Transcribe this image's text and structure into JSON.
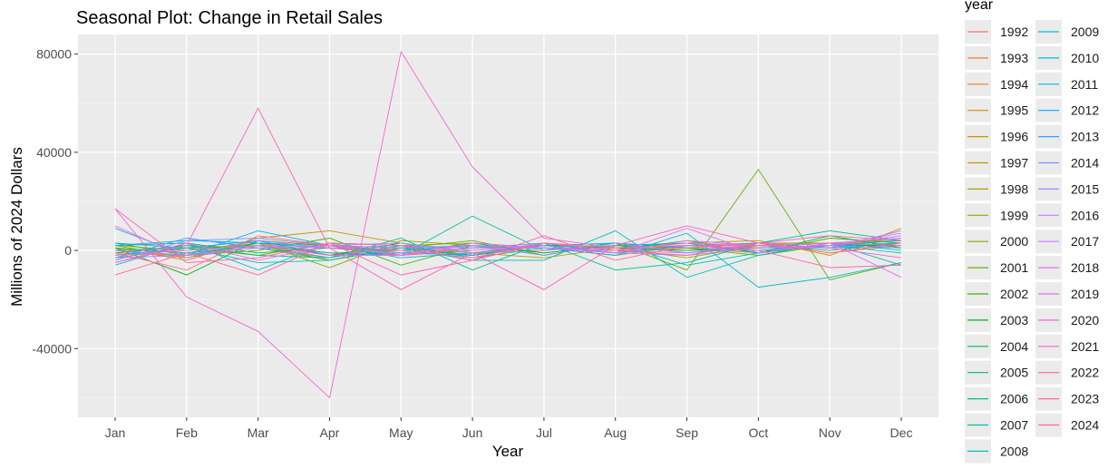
{
  "chart_data": {
    "type": "line",
    "title": "Seasonal Plot: Change in Retail Sales",
    "xlabel": "Year",
    "ylabel": "Millions of 2024 Dollars",
    "categories": [
      "Jan",
      "Feb",
      "Mar",
      "Apr",
      "May",
      "Jun",
      "Jul",
      "Aug",
      "Sep",
      "Oct",
      "Nov",
      "Dec"
    ],
    "ylim": [
      -68000,
      88000
    ],
    "yticks": [
      -40000,
      0,
      40000,
      80000
    ],
    "grid": true,
    "legend": {
      "title": "year",
      "placement": "right"
    },
    "series": [
      {
        "name": "1992",
        "color": "#F8766D",
        "values": [
          -1000,
          -2000,
          3000,
          -2000,
          1000,
          -1000,
          0,
          2000,
          -1000,
          2000,
          1000,
          3000
        ]
      },
      {
        "name": "1993",
        "color": "#EE7C39",
        "values": [
          0,
          -3000,
          2000,
          1000,
          -2000,
          0,
          2000,
          -1000,
          1000,
          3000,
          -1000,
          2000
        ]
      },
      {
        "name": "1994",
        "color": "#E3851E",
        "values": [
          1000,
          -1000,
          4000,
          2000,
          -1000,
          1000,
          1000,
          0,
          2000,
          1000,
          2000,
          4000
        ]
      },
      {
        "name": "1995",
        "color": "#D78C00",
        "values": [
          -2000,
          1000,
          2000,
          -3000,
          2000,
          -2000,
          3000,
          1000,
          0,
          2000,
          3000,
          2000
        ]
      },
      {
        "name": "1996",
        "color": "#C99500",
        "values": [
          2000,
          0,
          3000,
          -1000,
          0,
          2000,
          -1000,
          2000,
          1000,
          -1000,
          2000,
          5000
        ]
      },
      {
        "name": "1997",
        "color": "#BA9B00",
        "values": [
          1000,
          -4000,
          5000,
          8000,
          3000,
          -1000,
          -3000,
          1000,
          3000,
          4000,
          -2000,
          9000
        ]
      },
      {
        "name": "1998",
        "color": "#A9A200",
        "values": [
          -1000,
          2000,
          1000,
          -4000,
          2000,
          3000,
          1000,
          -2000,
          2000,
          3000,
          3000,
          4000
        ]
      },
      {
        "name": "1999",
        "color": "#96A800",
        "values": [
          0,
          1000,
          -2000,
          3000,
          -2000,
          1000,
          2000,
          1000,
          -3000,
          2000,
          1000,
          3000
        ]
      },
      {
        "name": "2000",
        "color": "#80AC00",
        "values": [
          2000,
          -3000,
          3000,
          -7000,
          4000,
          2000,
          -1000,
          2000,
          1000,
          -2000,
          2000,
          1000
        ]
      },
      {
        "name": "2001",
        "color": "#66B000",
        "values": [
          -3000,
          1000,
          2000,
          -4000,
          1000,
          4000,
          -2000,
          3000,
          -8000,
          33000,
          -12000,
          -5000
        ]
      },
      {
        "name": "2002",
        "color": "#3FB500",
        "values": [
          3000,
          -2000,
          0,
          5000,
          -6000,
          2000,
          1000,
          0,
          4000,
          -1000,
          5000,
          3000
        ]
      },
      {
        "name": "2003",
        "color": "#00B812",
        "values": [
          1000,
          -10000,
          4000,
          -2000,
          3000,
          -1000,
          2000,
          1000,
          0,
          1000,
          2000,
          2000
        ]
      },
      {
        "name": "2004",
        "color": "#00BB4E",
        "values": [
          2000,
          3000,
          -1000,
          1000,
          -1000,
          3000,
          -1000,
          2000,
          3000,
          -1000,
          6000,
          1000
        ]
      },
      {
        "name": "2005",
        "color": "#00BD6F",
        "values": [
          0,
          -2000,
          3000,
          2000,
          1000,
          -2000,
          2000,
          -1000,
          2000,
          2000,
          0,
          3000
        ]
      },
      {
        "name": "2006",
        "color": "#00BF8A",
        "values": [
          -1000,
          2000,
          -2000,
          -3000,
          5000,
          -8000,
          3000,
          -8000,
          -5000,
          3000,
          8000,
          4000
        ]
      },
      {
        "name": "2007",
        "color": "#00C0A3",
        "values": [
          1000,
          -1000,
          2000,
          -1000,
          -2000,
          14000,
          0,
          3000,
          -6000,
          -1000,
          2000,
          -1000
        ]
      },
      {
        "name": "2008",
        "color": "#00C0B9",
        "values": [
          -2000,
          1000,
          -5000,
          -4000,
          1000,
          -4000,
          -4000,
          8000,
          -11000,
          -2000,
          3000,
          -6000
        ]
      },
      {
        "name": "2009",
        "color": "#00BDCE",
        "values": [
          -6000,
          3000,
          -8000,
          3000,
          2000,
          -3000,
          1000,
          -2000,
          7000,
          -15000,
          -11000,
          -5000
        ]
      },
      {
        "name": "2010",
        "color": "#00B9E0",
        "values": [
          9000,
          -2000,
          8000,
          2000,
          -3000,
          -1000,
          2000,
          -1000,
          2000,
          1000,
          2000,
          3000
        ]
      },
      {
        "name": "2011",
        "color": "#00B3F0",
        "values": [
          2000,
          4000,
          3000,
          1000,
          0,
          2000,
          1000,
          1000,
          3000,
          -1000,
          3000,
          0
        ]
      },
      {
        "name": "2012",
        "color": "#00ABFD",
        "values": [
          3000,
          1000,
          4000,
          -2000,
          -1000,
          -2000,
          2000,
          3000,
          1000,
          0,
          2000,
          4000
        ]
      },
      {
        "name": "2013",
        "color": "#33A1FF",
        "values": [
          -3000,
          5000,
          1000,
          -3000,
          2000,
          1000,
          3000,
          -1000,
          2000,
          3000,
          1000,
          2000
        ]
      },
      {
        "name": "2014",
        "color": "#7896FF",
        "values": [
          -4000,
          4000,
          5000,
          2000,
          1000,
          2000,
          -2000,
          3000,
          -1000,
          1000,
          2000,
          1000
        ]
      },
      {
        "name": "2015",
        "color": "#9E8CFF",
        "values": [
          -3000,
          -2000,
          4000,
          1000,
          2000,
          0,
          2000,
          -1000,
          -2000,
          1000,
          2000,
          6000
        ]
      },
      {
        "name": "2016",
        "color": "#B983FF",
        "values": [
          0,
          -2000,
          1000,
          2000,
          3000,
          -1000,
          3000,
          0,
          -1000,
          3000,
          2000,
          7000
        ]
      },
      {
        "name": "2017",
        "color": "#CF79FF",
        "values": [
          -2000,
          0,
          2000,
          1000,
          -1000,
          2000,
          1000,
          -1000,
          4000,
          2000,
          3000,
          5000
        ]
      },
      {
        "name": "2018",
        "color": "#E070F2",
        "values": [
          -5000,
          3000,
          -4000,
          2000,
          -2000,
          1000,
          1000,
          -1000,
          9000,
          -1000,
          3000,
          -11000
        ]
      },
      {
        "name": "2019",
        "color": "#EE69E4",
        "values": [
          10000,
          -3000,
          2000,
          -2000,
          -2000,
          3000,
          1000,
          0,
          3000,
          2000,
          1000,
          8000
        ]
      },
      {
        "name": "2020",
        "color": "#F963D3",
        "values": [
          17000,
          -19000,
          -33000,
          -60000,
          81000,
          34000,
          5000,
          1000,
          2000,
          1000,
          1000,
          -3000
        ]
      },
      {
        "name": "2021",
        "color": "#FF61C1",
        "values": [
          -5000,
          2000,
          58000,
          1000,
          -16000,
          -1000,
          -16000,
          2000,
          10000,
          3000,
          6000,
          4000
        ]
      },
      {
        "name": "2022",
        "color": "#FF62AB",
        "values": [
          17000,
          -5000,
          -3000,
          3000,
          -10000,
          -4000,
          6000,
          -4000,
          2000,
          0,
          -7000,
          -6000
        ]
      },
      {
        "name": "2023",
        "color": "#FF6794",
        "values": [
          -10000,
          -1000,
          -10000,
          3000,
          2000,
          -4000,
          3000,
          0,
          -2000,
          3000,
          -1000,
          3000
        ]
      },
      {
        "name": "2024",
        "color": "#FF6C90",
        "values": [
          -1000,
          -8000,
          6000,
          2000,
          0,
          -3000,
          3000,
          1000,
          2000,
          2000,
          3000,
          2000
        ]
      }
    ]
  }
}
